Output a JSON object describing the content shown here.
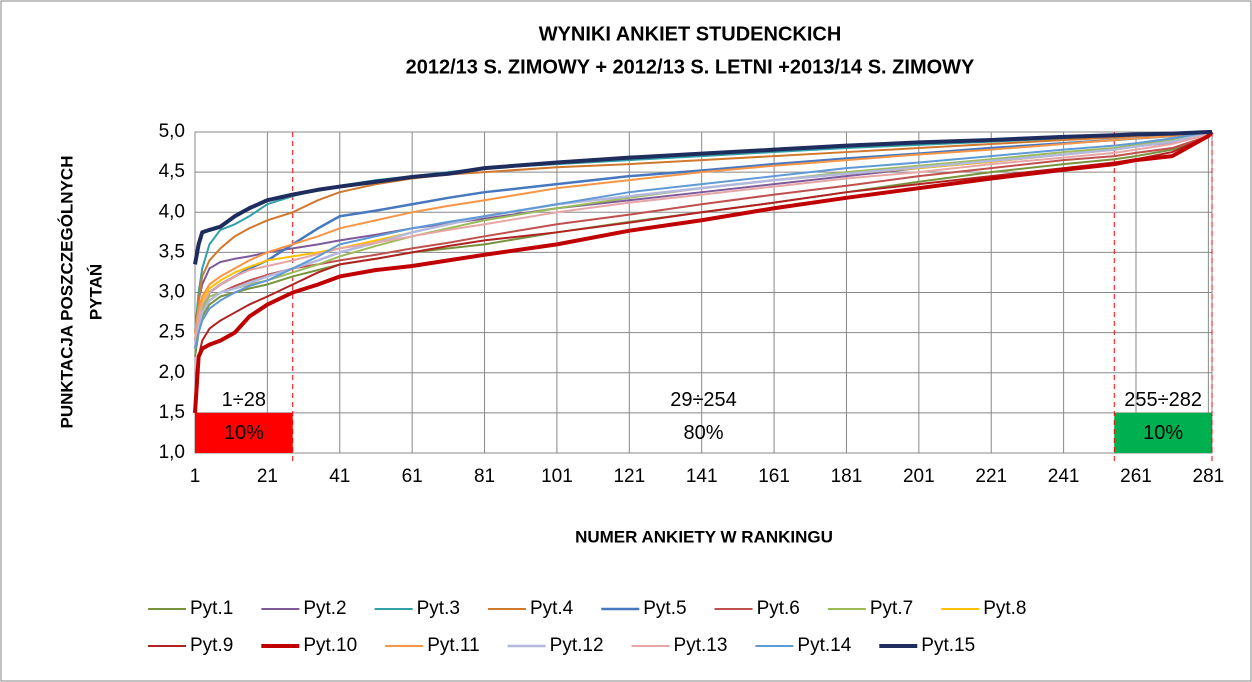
{
  "chart_data": {
    "type": "line",
    "title": "WYNIKI  ANKIET  STUDENCKICH",
    "subtitle": "2012/13 S. ZIMOWY + 2012/13 S. LETNI +2013/14 S. ZIMOWY",
    "ylabel": [
      "PUNKTACJA  POSZCZEGÓLNYCH",
      "PYTAŃ"
    ],
    "xlabel": "NUMER ANKIETY W RANKINGU",
    "xlim": [
      1,
      282
    ],
    "ylim": [
      1,
      5
    ],
    "xticks": [
      1,
      21,
      41,
      61,
      81,
      101,
      121,
      141,
      161,
      181,
      201,
      221,
      241,
      261,
      281
    ],
    "yticks": [
      {
        "value": 1,
        "label": "1,0"
      },
      {
        "value": 1.5,
        "label": "1,5"
      },
      {
        "value": 2,
        "label": "2,0"
      },
      {
        "value": 2.5,
        "label": "2,5"
      },
      {
        "value": 3,
        "label": "3,0"
      },
      {
        "value": 3.5,
        "label": "3,5"
      },
      {
        "value": 4,
        "label": "4,0"
      },
      {
        "value": 4.5,
        "label": "4,5"
      },
      {
        "value": 5,
        "label": "5,0"
      }
    ],
    "grid": true,
    "legend": "bottom",
    "x": [
      1,
      2,
      3,
      5,
      8,
      12,
      16,
      21,
      28,
      35,
      41,
      51,
      61,
      71,
      81,
      101,
      121,
      141,
      161,
      181,
      201,
      221,
      241,
      255,
      261,
      271,
      281,
      282
    ],
    "series": [
      {
        "name": "Pyt.1",
        "color": "#77933c",
        "width": 2,
        "values": [
          2.2,
          2.5,
          2.7,
          2.85,
          2.95,
          3.0,
          3.05,
          3.1,
          3.2,
          3.28,
          3.35,
          3.42,
          3.5,
          3.55,
          3.6,
          3.75,
          3.88,
          4.0,
          4.12,
          4.25,
          4.38,
          4.5,
          4.6,
          4.66,
          4.7,
          4.78,
          4.95,
          5.0
        ]
      },
      {
        "name": "Pyt.2",
        "color": "#7e5a9b",
        "width": 2,
        "values": [
          2.5,
          2.9,
          3.1,
          3.3,
          3.38,
          3.42,
          3.45,
          3.5,
          3.55,
          3.6,
          3.65,
          3.72,
          3.8,
          3.86,
          3.92,
          4.05,
          4.15,
          4.25,
          4.35,
          4.45,
          4.55,
          4.63,
          4.72,
          4.78,
          4.82,
          4.87,
          4.97,
          5.0
        ]
      },
      {
        "name": "Pyt.3",
        "color": "#31a0a8",
        "width": 2,
        "values": [
          2.5,
          3.0,
          3.3,
          3.6,
          3.78,
          3.85,
          3.95,
          4.1,
          4.2,
          4.28,
          4.33,
          4.4,
          4.45,
          4.5,
          4.55,
          4.6,
          4.65,
          4.7,
          4.75,
          4.8,
          4.84,
          4.88,
          4.92,
          4.95,
          4.96,
          4.98,
          5.0,
          5.0
        ]
      },
      {
        "name": "Pyt.4",
        "color": "#d0782e",
        "width": 2,
        "values": [
          2.4,
          2.9,
          3.2,
          3.4,
          3.55,
          3.7,
          3.8,
          3.9,
          4.0,
          4.15,
          4.25,
          4.35,
          4.42,
          4.47,
          4.5,
          4.56,
          4.6,
          4.65,
          4.7,
          4.75,
          4.8,
          4.85,
          4.9,
          4.93,
          4.95,
          4.97,
          5.0,
          5.0
        ]
      },
      {
        "name": "Pyt.5",
        "color": "#4678c0",
        "width": 2.5,
        "values": [
          2.3,
          2.6,
          2.8,
          3.0,
          3.1,
          3.2,
          3.3,
          3.4,
          3.6,
          3.8,
          3.95,
          4.02,
          4.1,
          4.18,
          4.25,
          4.35,
          4.45,
          4.52,
          4.6,
          4.67,
          4.73,
          4.8,
          4.86,
          4.9,
          4.92,
          4.95,
          5.0,
          5.0
        ]
      },
      {
        "name": "Pyt.6",
        "color": "#c0504d",
        "width": 2,
        "values": [
          2.3,
          2.6,
          2.75,
          2.9,
          3.0,
          3.08,
          3.15,
          3.22,
          3.3,
          3.35,
          3.4,
          3.47,
          3.55,
          3.62,
          3.7,
          3.85,
          3.97,
          4.1,
          4.22,
          4.33,
          4.45,
          4.55,
          4.65,
          4.7,
          4.74,
          4.8,
          4.95,
          5.0
        ]
      },
      {
        "name": "Pyt.7",
        "color": "#9bbb59",
        "width": 2,
        "values": [
          2.3,
          2.6,
          2.8,
          2.95,
          3.0,
          3.05,
          3.1,
          3.15,
          3.25,
          3.35,
          3.45,
          3.58,
          3.7,
          3.8,
          3.9,
          4.05,
          4.18,
          4.3,
          4.4,
          4.5,
          4.58,
          4.66,
          4.75,
          4.8,
          4.84,
          4.9,
          4.98,
          5.0
        ]
      },
      {
        "name": "Pyt.8",
        "color": "#ffc000",
        "width": 2,
        "values": [
          2.4,
          2.7,
          2.9,
          3.05,
          3.15,
          3.25,
          3.32,
          3.4,
          3.45,
          3.5,
          3.55,
          3.65,
          3.75,
          3.85,
          3.95,
          4.1,
          4.2,
          4.3,
          4.4,
          4.48,
          4.55,
          4.63,
          4.72,
          4.78,
          4.82,
          4.88,
          4.98,
          5.0
        ]
      },
      {
        "name": "Pyt.9",
        "color": "#b22222",
        "width": 2,
        "values": [
          1.5,
          2.2,
          2.4,
          2.55,
          2.65,
          2.75,
          2.85,
          2.95,
          3.1,
          3.25,
          3.35,
          3.42,
          3.5,
          3.58,
          3.65,
          3.75,
          3.87,
          4.0,
          4.12,
          4.25,
          4.35,
          4.45,
          4.55,
          4.62,
          4.66,
          4.75,
          4.95,
          5.0
        ]
      },
      {
        "name": "Pyt.10",
        "color": "#c00000",
        "width": 4,
        "values": [
          1.5,
          2.2,
          2.3,
          2.35,
          2.4,
          2.5,
          2.7,
          2.85,
          3.0,
          3.1,
          3.2,
          3.28,
          3.33,
          3.4,
          3.47,
          3.6,
          3.77,
          3.9,
          4.05,
          4.18,
          4.3,
          4.42,
          4.53,
          4.6,
          4.65,
          4.7,
          4.95,
          5.0
        ]
      },
      {
        "name": "Pyt.11",
        "color": "#f79646",
        "width": 2,
        "values": [
          2.5,
          2.8,
          2.95,
          3.1,
          3.2,
          3.3,
          3.4,
          3.5,
          3.6,
          3.7,
          3.8,
          3.9,
          4.0,
          4.08,
          4.15,
          4.3,
          4.4,
          4.5,
          4.58,
          4.65,
          4.72,
          4.78,
          4.85,
          4.9,
          4.92,
          4.95,
          5.0,
          5.0
        ]
      },
      {
        "name": "Pyt.12",
        "color": "#b3b9dc",
        "width": 2.5,
        "values": [
          2.3,
          2.6,
          2.75,
          2.9,
          3.0,
          3.05,
          3.12,
          3.2,
          3.3,
          3.4,
          3.5,
          3.62,
          3.75,
          3.85,
          3.95,
          4.1,
          4.2,
          4.3,
          4.4,
          4.48,
          4.56,
          4.64,
          4.72,
          4.78,
          4.82,
          4.88,
          4.98,
          5.0
        ]
      },
      {
        "name": "Pyt.13",
        "color": "#e6a6a6",
        "width": 2,
        "values": [
          2.4,
          2.7,
          2.85,
          3.0,
          3.1,
          3.2,
          3.28,
          3.33,
          3.4,
          3.48,
          3.55,
          3.62,
          3.7,
          3.78,
          3.85,
          4.0,
          4.12,
          4.22,
          4.32,
          4.42,
          4.5,
          4.6,
          4.68,
          4.74,
          4.78,
          4.85,
          4.97,
          5.0
        ]
      },
      {
        "name": "Pyt.14",
        "color": "#5f9ad6",
        "width": 2,
        "values": [
          2.3,
          2.5,
          2.65,
          2.8,
          2.9,
          3.0,
          3.08,
          3.15,
          3.3,
          3.45,
          3.6,
          3.7,
          3.8,
          3.88,
          3.95,
          4.1,
          4.25,
          4.35,
          4.45,
          4.55,
          4.62,
          4.7,
          4.78,
          4.83,
          4.86,
          4.92,
          5.0,
          5.0
        ]
      },
      {
        "name": "Pyt.15",
        "color": "#1f2d5e",
        "width": 4,
        "values": [
          3.35,
          3.6,
          3.75,
          3.78,
          3.82,
          3.95,
          4.05,
          4.15,
          4.22,
          4.28,
          4.32,
          4.38,
          4.44,
          4.48,
          4.55,
          4.62,
          4.68,
          4.73,
          4.78,
          4.83,
          4.87,
          4.9,
          4.94,
          4.96,
          4.97,
          4.98,
          5.0,
          5.0
        ]
      }
    ],
    "band_top": 1.5,
    "bands": [
      {
        "from": 1,
        "to": 28,
        "range": "1÷28",
        "share": "10%",
        "color": "#ff0000"
      },
      {
        "from": 29,
        "to": 254,
        "range": "29÷254",
        "share": "80%"
      },
      {
        "from": 255,
        "to": 282,
        "range": "255÷282",
        "share": "10%",
        "color": "#00b050"
      }
    ],
    "dividers": [
      28,
      255,
      282
    ],
    "divider_color": "#ff0000"
  }
}
